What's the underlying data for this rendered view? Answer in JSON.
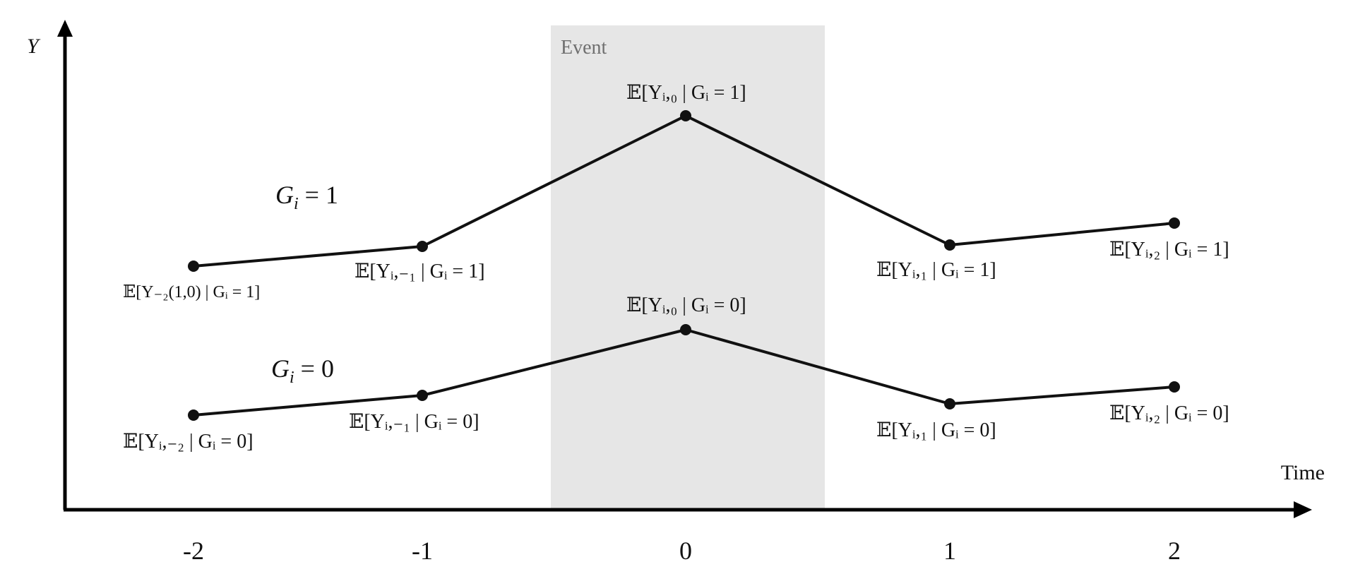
{
  "diagram": {
    "y_axis_label": "Y",
    "x_axis_label": "Time",
    "event_label": "Event",
    "event_band_color": "#e6e6e6",
    "event_text_color": "#6f6f6f",
    "line_color": "#111111",
    "x_ticks": [
      "-2",
      "-1",
      "0",
      "1",
      "2"
    ],
    "groups": [
      {
        "label": "G",
        "label_sub": "i",
        "label_rest": " = 1",
        "points": [
          {
            "t": -2,
            "label": "𝔼[Y₋₂(1,0) | Gᵢ = 1]"
          },
          {
            "t": -1,
            "label": "𝔼[Yᵢ,₋₁ | Gᵢ = 1]"
          },
          {
            "t": 0,
            "label": "𝔼[Yᵢ,₀ | Gᵢ = 1]"
          },
          {
            "t": 1,
            "label": "𝔼[Yᵢ,₁ | Gᵢ = 1]"
          },
          {
            "t": 2,
            "label": "𝔼[Yᵢ,₂ | Gᵢ = 1]"
          }
        ]
      },
      {
        "label": "G",
        "label_sub": "i",
        "label_rest": " = 0",
        "points": [
          {
            "t": -2,
            "label": "𝔼[Yᵢ,₋₂ | Gᵢ = 0]"
          },
          {
            "t": -1,
            "label": "𝔼[Yᵢ,₋₁ | Gᵢ = 0]"
          },
          {
            "t": 0,
            "label": "𝔼[Yᵢ,₀ | Gᵢ = 0]"
          },
          {
            "t": 1,
            "label": "𝔼[Yᵢ,₁ | Gᵢ = 0]"
          },
          {
            "t": 2,
            "label": "𝔼[Yᵢ,₂ | Gᵢ = 0]"
          }
        ]
      }
    ]
  }
}
